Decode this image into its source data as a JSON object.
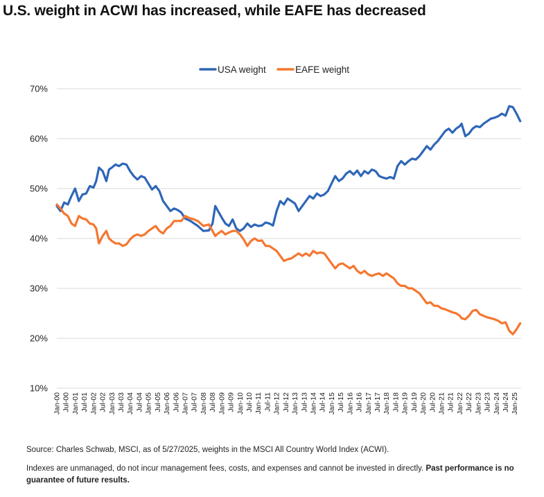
{
  "title": "U.S. weight in ACWI has increased, while EAFE has decreased",
  "source": "Source: Charles Schwab, MSCI, as of 5/27/2025, weights in the MSCI All Country World Index (ACWI).",
  "disclaimer_text": "Indexes are unmanaged, do not incur management fees, costs, and expenses and cannot be invested in directly.",
  "disclaimer_bold": "Past performance is no guarantee of future results.",
  "chart_data": {
    "type": "line",
    "title": "",
    "xlabel": "",
    "ylabel": "",
    "ylim": [
      10,
      70
    ],
    "yticks": [
      10,
      20,
      30,
      40,
      50,
      60,
      70
    ],
    "ytick_labels": [
      "10%",
      "20%",
      "30%",
      "40%",
      "50%",
      "60%",
      "70%"
    ],
    "y_grid": true,
    "legend_position": "top-center",
    "x_range": [
      2000.0,
      2025.35
    ],
    "xtick_labels": [
      "Jan-00",
      "Jul-00",
      "Jan-01",
      "Jul-01",
      "Jan-02",
      "Jul-02",
      "Jan-03",
      "Jul-03",
      "Jan-04",
      "Jul-04",
      "Jan-05",
      "Jul-05",
      "Jan-06",
      "Jul-06",
      "Jan-07",
      "Jul-07",
      "Jan-08",
      "Jul-08",
      "Jan-09",
      "Jul-09",
      "Jan-10",
      "Jul-10",
      "Jan-11",
      "Jul-11",
      "Jan-12",
      "Jul-12",
      "Jan-13",
      "Jul-13",
      "Jan-14",
      "Jul-14",
      "Jan-15",
      "Jul-15",
      "Jan-16",
      "Jul-16",
      "Jan-17",
      "Jul-17",
      "Jan-18",
      "Jul-18",
      "Jan-19",
      "Jul-19",
      "Jan-20",
      "Jul-20",
      "Jan-21",
      "Jul-21",
      "Jan-22",
      "Jul-22",
      "Jan-23",
      "Jul-23",
      "Jan-24",
      "Jul-24",
      "Jan-25"
    ],
    "series": [
      {
        "name": "USA weight",
        "color": "#2e66b8",
        "points": [
          [
            2000.0,
            46.5
          ],
          [
            2000.2,
            45.5
          ],
          [
            2000.4,
            47.2
          ],
          [
            2000.6,
            46.8
          ],
          [
            2000.8,
            48.5
          ],
          [
            2001.0,
            50.0
          ],
          [
            2001.2,
            47.5
          ],
          [
            2001.4,
            48.8
          ],
          [
            2001.6,
            49.0
          ],
          [
            2001.8,
            50.5
          ],
          [
            2002.0,
            50.2
          ],
          [
            2002.15,
            51.5
          ],
          [
            2002.3,
            54.2
          ],
          [
            2002.5,
            53.5
          ],
          [
            2002.7,
            51.5
          ],
          [
            2002.85,
            53.8
          ],
          [
            2003.0,
            54.2
          ],
          [
            2003.2,
            54.8
          ],
          [
            2003.4,
            54.5
          ],
          [
            2003.6,
            55.0
          ],
          [
            2003.8,
            54.8
          ],
          [
            2004.0,
            53.5
          ],
          [
            2004.2,
            52.5
          ],
          [
            2004.4,
            51.8
          ],
          [
            2004.6,
            52.5
          ],
          [
            2004.8,
            52.2
          ],
          [
            2005.0,
            51.0
          ],
          [
            2005.2,
            49.8
          ],
          [
            2005.4,
            50.5
          ],
          [
            2005.6,
            49.5
          ],
          [
            2005.8,
            47.5
          ],
          [
            2006.0,
            46.5
          ],
          [
            2006.2,
            45.5
          ],
          [
            2006.4,
            46.0
          ],
          [
            2006.6,
            45.7
          ],
          [
            2006.8,
            45.2
          ],
          [
            2007.0,
            44.0
          ],
          [
            2007.3,
            43.5
          ],
          [
            2007.5,
            43.0
          ],
          [
            2007.7,
            42.5
          ],
          [
            2008.0,
            41.5
          ],
          [
            2008.3,
            41.6
          ],
          [
            2008.5,
            43.0
          ],
          [
            2008.65,
            46.5
          ],
          [
            2008.8,
            45.5
          ],
          [
            2009.0,
            44.2
          ],
          [
            2009.2,
            43.0
          ],
          [
            2009.4,
            42.5
          ],
          [
            2009.6,
            43.8
          ],
          [
            2009.8,
            42.0
          ],
          [
            2010.0,
            41.5
          ],
          [
            2010.2,
            42.0
          ],
          [
            2010.4,
            43.0
          ],
          [
            2010.6,
            42.3
          ],
          [
            2010.8,
            42.8
          ],
          [
            2011.0,
            42.5
          ],
          [
            2011.2,
            42.6
          ],
          [
            2011.4,
            43.2
          ],
          [
            2011.6,
            43.0
          ],
          [
            2011.8,
            42.6
          ],
          [
            2012.0,
            45.5
          ],
          [
            2012.2,
            47.5
          ],
          [
            2012.4,
            46.8
          ],
          [
            2012.6,
            48.0
          ],
          [
            2012.8,
            47.5
          ],
          [
            2013.0,
            47.0
          ],
          [
            2013.2,
            45.5
          ],
          [
            2013.4,
            46.5
          ],
          [
            2013.6,
            47.5
          ],
          [
            2013.8,
            48.5
          ],
          [
            2014.0,
            48.0
          ],
          [
            2014.2,
            49.0
          ],
          [
            2014.4,
            48.5
          ],
          [
            2014.6,
            48.8
          ],
          [
            2014.8,
            49.5
          ],
          [
            2015.0,
            51.0
          ],
          [
            2015.2,
            52.5
          ],
          [
            2015.4,
            51.5
          ],
          [
            2015.6,
            52.0
          ],
          [
            2015.8,
            53.0
          ],
          [
            2016.0,
            53.5
          ],
          [
            2016.2,
            52.8
          ],
          [
            2016.4,
            53.6
          ],
          [
            2016.6,
            52.5
          ],
          [
            2016.8,
            53.5
          ],
          [
            2017.0,
            53.0
          ],
          [
            2017.2,
            53.8
          ],
          [
            2017.4,
            53.5
          ],
          [
            2017.6,
            52.5
          ],
          [
            2017.8,
            52.2
          ],
          [
            2018.0,
            52.0
          ],
          [
            2018.2,
            52.3
          ],
          [
            2018.4,
            52.0
          ],
          [
            2018.6,
            54.5
          ],
          [
            2018.8,
            55.5
          ],
          [
            2019.0,
            54.8
          ],
          [
            2019.2,
            55.5
          ],
          [
            2019.4,
            56.0
          ],
          [
            2019.6,
            55.8
          ],
          [
            2019.8,
            56.5
          ],
          [
            2020.0,
            57.5
          ],
          [
            2020.2,
            58.5
          ],
          [
            2020.4,
            57.8
          ],
          [
            2020.6,
            58.8
          ],
          [
            2020.8,
            59.5
          ],
          [
            2021.0,
            60.5
          ],
          [
            2021.2,
            61.5
          ],
          [
            2021.4,
            62.0
          ],
          [
            2021.6,
            61.2
          ],
          [
            2021.8,
            62.0
          ],
          [
            2022.0,
            62.5
          ],
          [
            2022.1,
            63.0
          ],
          [
            2022.3,
            60.5
          ],
          [
            2022.5,
            61.0
          ],
          [
            2022.7,
            62.0
          ],
          [
            2022.9,
            62.5
          ],
          [
            2023.1,
            62.3
          ],
          [
            2023.3,
            63.0
          ],
          [
            2023.5,
            63.5
          ],
          [
            2023.7,
            64.0
          ],
          [
            2023.9,
            64.2
          ],
          [
            2024.1,
            64.5
          ],
          [
            2024.3,
            65.0
          ],
          [
            2024.5,
            64.6
          ],
          [
            2024.7,
            66.5
          ],
          [
            2024.9,
            66.3
          ],
          [
            2025.1,
            65.0
          ],
          [
            2025.3,
            63.5
          ]
        ]
      },
      {
        "name": "EAFE weight",
        "color": "#f5762f",
        "points": [
          [
            2000.0,
            46.8
          ],
          [
            2000.2,
            46.0
          ],
          [
            2000.4,
            45.0
          ],
          [
            2000.6,
            44.5
          ],
          [
            2000.8,
            43.0
          ],
          [
            2001.0,
            42.5
          ],
          [
            2001.2,
            44.5
          ],
          [
            2001.4,
            44.0
          ],
          [
            2001.6,
            43.8
          ],
          [
            2001.8,
            43.0
          ],
          [
            2002.0,
            42.8
          ],
          [
            2002.15,
            42.0
          ],
          [
            2002.3,
            39.0
          ],
          [
            2002.5,
            40.5
          ],
          [
            2002.7,
            41.5
          ],
          [
            2002.85,
            40.0
          ],
          [
            2003.0,
            39.5
          ],
          [
            2003.2,
            39.0
          ],
          [
            2003.4,
            39.0
          ],
          [
            2003.6,
            38.5
          ],
          [
            2003.8,
            38.8
          ],
          [
            2004.0,
            39.8
          ],
          [
            2004.2,
            40.5
          ],
          [
            2004.4,
            40.8
          ],
          [
            2004.6,
            40.5
          ],
          [
            2004.8,
            40.8
          ],
          [
            2005.0,
            41.5
          ],
          [
            2005.2,
            42.0
          ],
          [
            2005.4,
            42.5
          ],
          [
            2005.6,
            41.5
          ],
          [
            2005.8,
            41.0
          ],
          [
            2006.0,
            42.0
          ],
          [
            2006.2,
            42.5
          ],
          [
            2006.4,
            43.5
          ],
          [
            2006.6,
            43.5
          ],
          [
            2006.8,
            43.5
          ],
          [
            2007.0,
            44.5
          ],
          [
            2007.3,
            44.0
          ],
          [
            2007.5,
            43.8
          ],
          [
            2007.7,
            43.5
          ],
          [
            2008.0,
            42.5
          ],
          [
            2008.3,
            42.8
          ],
          [
            2008.5,
            41.5
          ],
          [
            2008.65,
            40.5
          ],
          [
            2008.8,
            41.0
          ],
          [
            2009.0,
            41.5
          ],
          [
            2009.2,
            40.8
          ],
          [
            2009.4,
            41.2
          ],
          [
            2009.6,
            41.5
          ],
          [
            2009.8,
            41.5
          ],
          [
            2010.0,
            40.8
          ],
          [
            2010.2,
            39.8
          ],
          [
            2010.4,
            38.5
          ],
          [
            2010.6,
            39.5
          ],
          [
            2010.8,
            40.0
          ],
          [
            2011.0,
            39.5
          ],
          [
            2011.2,
            39.6
          ],
          [
            2011.4,
            38.5
          ],
          [
            2011.6,
            38.5
          ],
          [
            2011.8,
            38.0
          ],
          [
            2012.0,
            37.5
          ],
          [
            2012.2,
            36.5
          ],
          [
            2012.4,
            35.5
          ],
          [
            2012.6,
            35.8
          ],
          [
            2012.8,
            36.0
          ],
          [
            2013.0,
            36.5
          ],
          [
            2013.2,
            37.0
          ],
          [
            2013.4,
            36.5
          ],
          [
            2013.6,
            37.0
          ],
          [
            2013.8,
            36.5
          ],
          [
            2014.0,
            37.5
          ],
          [
            2014.2,
            37.0
          ],
          [
            2014.4,
            37.2
          ],
          [
            2014.6,
            37.0
          ],
          [
            2014.8,
            36.0
          ],
          [
            2015.0,
            35.0
          ],
          [
            2015.2,
            34.0
          ],
          [
            2015.4,
            34.8
          ],
          [
            2015.6,
            35.0
          ],
          [
            2015.8,
            34.5
          ],
          [
            2016.0,
            34.0
          ],
          [
            2016.2,
            34.5
          ],
          [
            2016.4,
            33.5
          ],
          [
            2016.6,
            33.0
          ],
          [
            2016.8,
            33.5
          ],
          [
            2017.0,
            32.8
          ],
          [
            2017.2,
            32.5
          ],
          [
            2017.4,
            32.8
          ],
          [
            2017.6,
            33.0
          ],
          [
            2017.8,
            32.5
          ],
          [
            2018.0,
            33.0
          ],
          [
            2018.2,
            32.5
          ],
          [
            2018.4,
            32.0
          ],
          [
            2018.6,
            31.0
          ],
          [
            2018.8,
            30.5
          ],
          [
            2019.0,
            30.5
          ],
          [
            2019.2,
            30.0
          ],
          [
            2019.4,
            30.0
          ],
          [
            2019.6,
            29.5
          ],
          [
            2019.8,
            29.0
          ],
          [
            2020.0,
            28.0
          ],
          [
            2020.2,
            27.0
          ],
          [
            2020.4,
            27.2
          ],
          [
            2020.6,
            26.5
          ],
          [
            2020.8,
            26.5
          ],
          [
            2021.0,
            26.0
          ],
          [
            2021.2,
            25.8
          ],
          [
            2021.4,
            25.5
          ],
          [
            2021.6,
            25.2
          ],
          [
            2021.8,
            25.0
          ],
          [
            2022.0,
            24.5
          ],
          [
            2022.1,
            24.0
          ],
          [
            2022.3,
            23.8
          ],
          [
            2022.5,
            24.5
          ],
          [
            2022.7,
            25.5
          ],
          [
            2022.9,
            25.7
          ],
          [
            2023.1,
            24.8
          ],
          [
            2023.3,
            24.5
          ],
          [
            2023.5,
            24.2
          ],
          [
            2023.7,
            24.0
          ],
          [
            2023.9,
            23.8
          ],
          [
            2024.1,
            23.5
          ],
          [
            2024.3,
            23.0
          ],
          [
            2024.5,
            23.2
          ],
          [
            2024.7,
            21.5
          ],
          [
            2024.9,
            20.8
          ],
          [
            2025.1,
            21.8
          ],
          [
            2025.3,
            23.0
          ]
        ]
      }
    ]
  }
}
